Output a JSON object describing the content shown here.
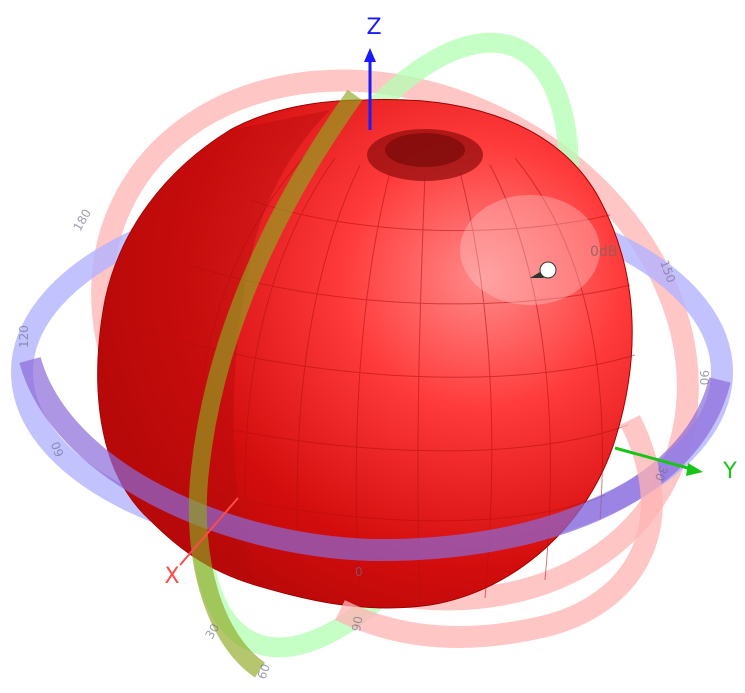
{
  "axes": {
    "x": {
      "label": "X",
      "color": "#ff4a4a"
    },
    "y": {
      "label": "Y",
      "color": "#19c419"
    },
    "z": {
      "label": "Z",
      "color": "#1a1aff"
    }
  },
  "rings": {
    "azimuth_color": "#b3b3ff",
    "elevation_color": "#ffb3b3",
    "vertical_color": "#b3ffb3"
  },
  "pattern": {
    "color": "#e31212",
    "marker_label": "0dB",
    "marker_icon": "pointer-arrow-icon"
  },
  "tick_labels": [
    "180",
    "150",
    "120",
    "90",
    "60",
    "30",
    "0",
    "30",
    "60",
    "90"
  ]
}
